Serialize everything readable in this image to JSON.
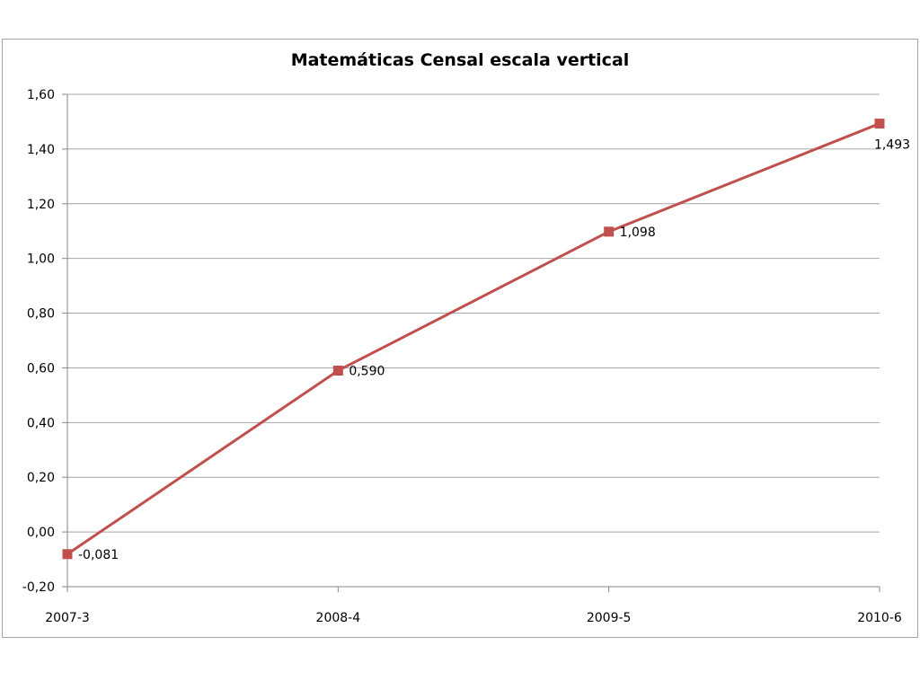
{
  "chart_data": {
    "type": "line",
    "title": "Matemáticas Censal escala vertical",
    "xlabel": "",
    "ylabel": "",
    "categories": [
      "2007-3",
      "2008-4",
      "2009-5",
      "2010-6"
    ],
    "series": [
      {
        "values": [
          -0.081,
          0.59,
          1.098,
          1.493
        ],
        "data_labels": [
          "-0,081",
          "0,590",
          "1,098",
          "1,493"
        ],
        "color": "#c0504d"
      }
    ],
    "ylim": [
      -0.2,
      1.6
    ],
    "yticks": [
      -0.2,
      0,
      0.2,
      0.4,
      0.6,
      0.8,
      1.0,
      1.2,
      1.4,
      1.6
    ],
    "ytick_labels": [
      "-0,20",
      "0,00",
      "0,20",
      "0,40",
      "0,60",
      "0,80",
      "1,00",
      "1,20",
      "1,40",
      "1,60"
    ],
    "grid": true,
    "legend": "none",
    "gridline_color": "#a6a6a6",
    "axis_color": "#868686"
  }
}
